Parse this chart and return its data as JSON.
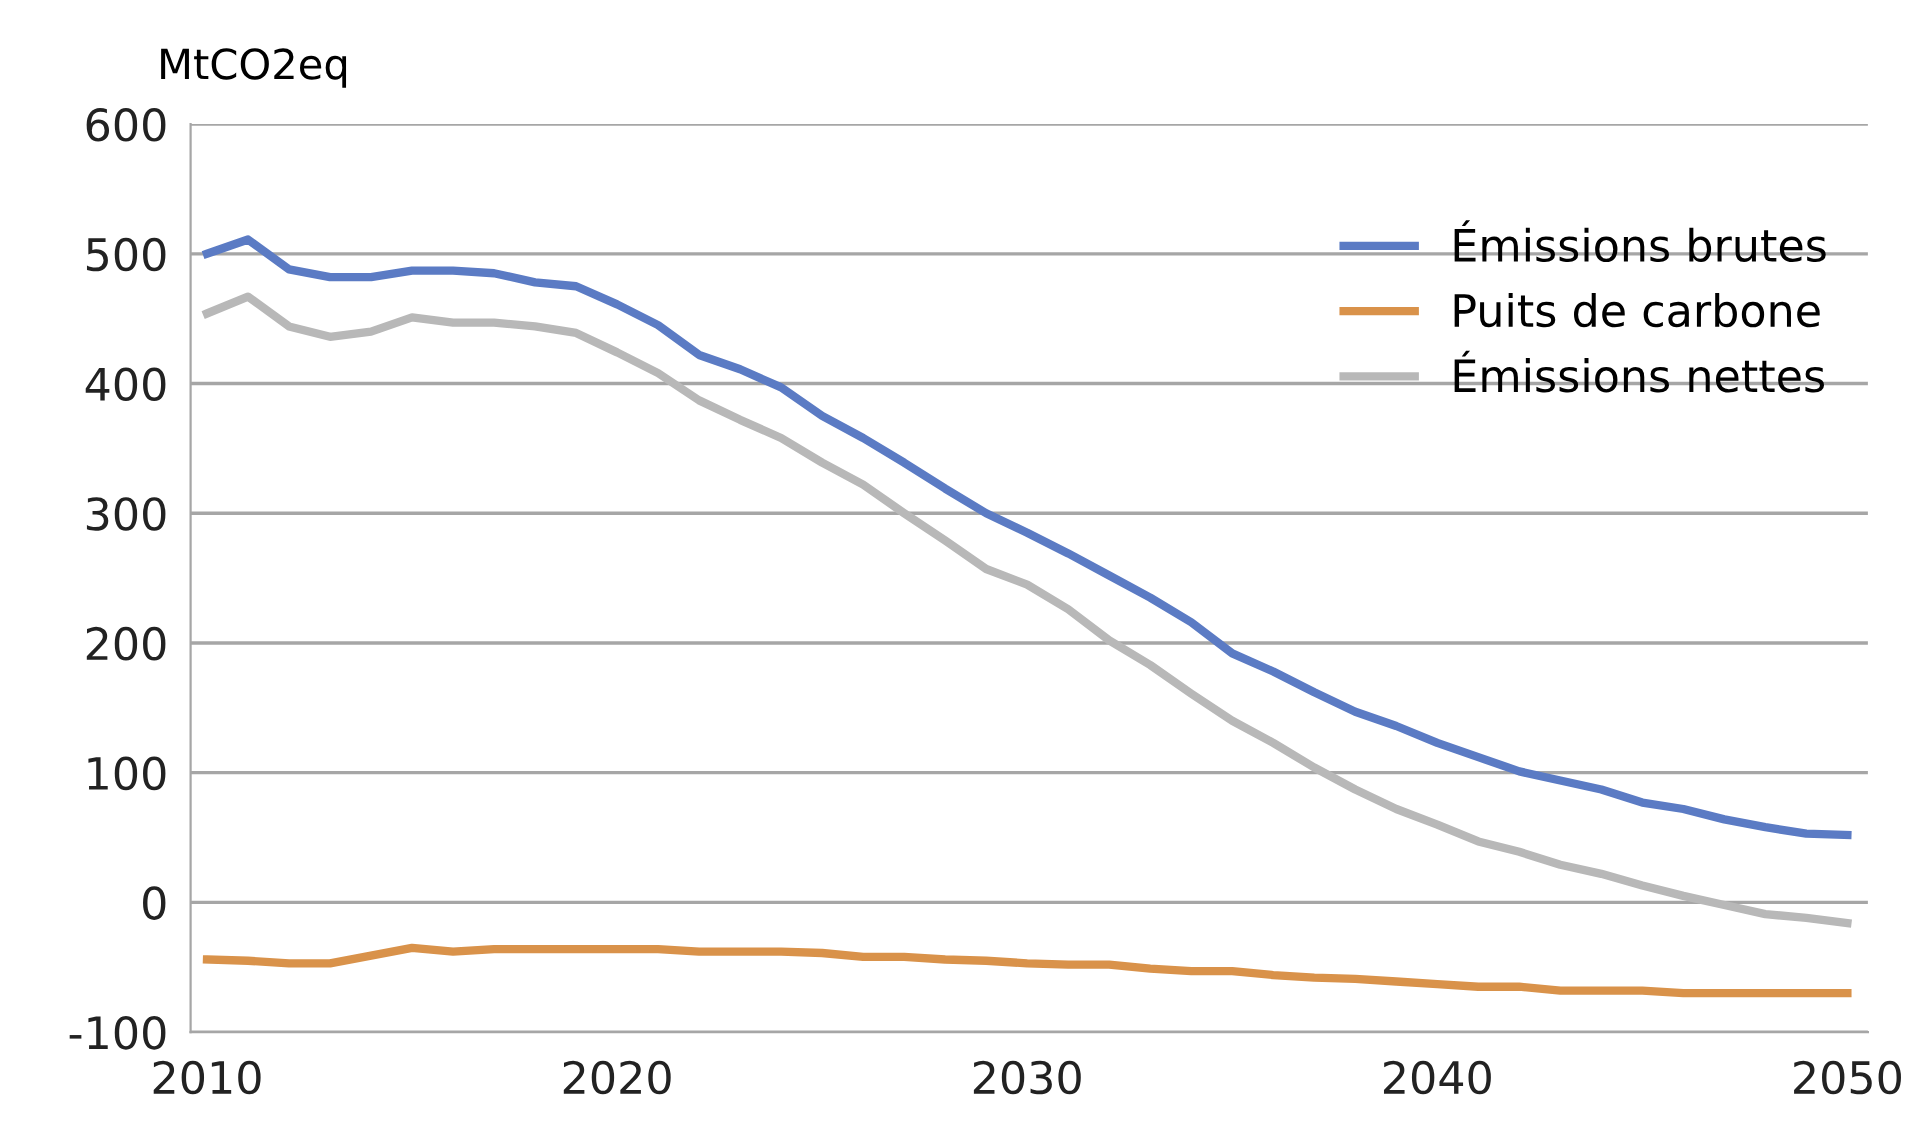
{
  "chart_data": {
    "type": "line",
    "ylabel": "MtCO2eq",
    "x": [
      2010,
      2011,
      2012,
      2013,
      2014,
      2015,
      2016,
      2017,
      2018,
      2019,
      2020,
      2021,
      2022,
      2023,
      2024,
      2025,
      2026,
      2027,
      2028,
      2029,
      2030,
      2031,
      2032,
      2033,
      2034,
      2035,
      2036,
      2037,
      2038,
      2039,
      2040,
      2041,
      2042,
      2043,
      2044,
      2045,
      2046,
      2047,
      2048,
      2049,
      2050
    ],
    "series": [
      {
        "name": "Émissions brutes",
        "color": "#5b7bc4",
        "values": [
          500,
          511,
          488,
          482,
          482,
          487,
          487,
          485,
          478,
          475,
          461,
          445,
          422,
          411,
          397,
          375,
          358,
          339,
          319,
          300,
          285,
          269,
          252,
          235,
          216,
          192,
          178,
          162,
          147,
          136,
          123,
          112,
          101,
          94,
          87,
          77,
          72,
          64,
          58,
          53,
          52
        ]
      },
      {
        "name": "Puits de carbone",
        "color": "#d9924a",
        "values": [
          -44,
          -45,
          -47,
          -47,
          -41,
          -35,
          -38,
          -36,
          -36,
          -36,
          -36,
          -36,
          -38,
          -38,
          -38,
          -39,
          -42,
          -42,
          -44,
          -45,
          -47,
          -48,
          -48,
          -51,
          -53,
          -53,
          -56,
          -58,
          -59,
          -61,
          -63,
          -65,
          -65,
          -68,
          -68,
          -68,
          -70,
          -70,
          -70,
          -70,
          -70
        ]
      },
      {
        "name": "Émissions nettes",
        "color": "#b8b8b8",
        "values": [
          454,
          467,
          444,
          436,
          440,
          451,
          447,
          447,
          444,
          439,
          424,
          408,
          387,
          372,
          358,
          339,
          322,
          300,
          279,
          257,
          245,
          226,
          202,
          183,
          161,
          140,
          123,
          104,
          87,
          72,
          60,
          47,
          39,
          29,
          22,
          13,
          5,
          -2,
          -9,
          -12,
          -16
        ]
      }
    ],
    "xlim": [
      2009.6,
      2050.5
    ],
    "xticks": [
      2010,
      2020,
      2030,
      2040,
      2050
    ],
    "ylim": [
      -100,
      600
    ],
    "yticks": [
      -100,
      0,
      100,
      200,
      300,
      400,
      500,
      600
    ],
    "grid": "y",
    "legend": "top right",
    "marker": "none",
    "line_style": "solid"
  }
}
